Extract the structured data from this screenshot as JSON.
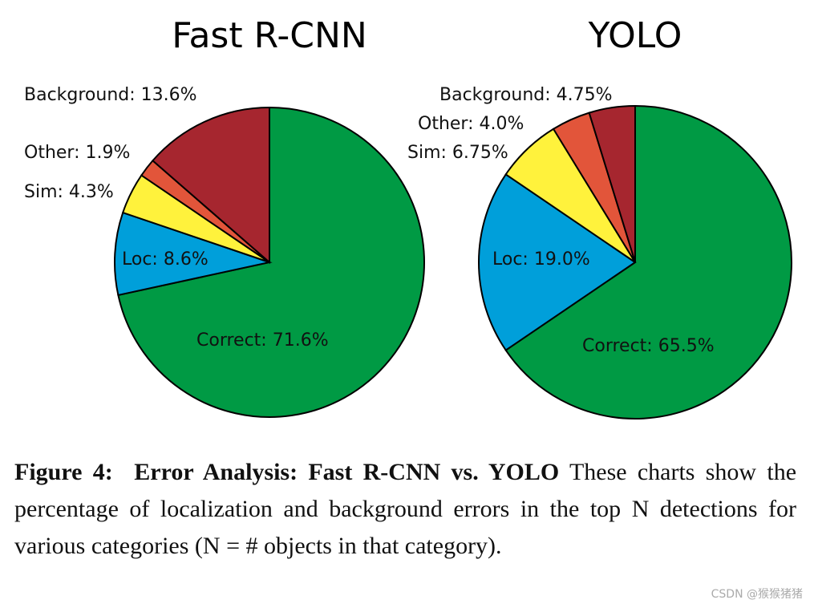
{
  "chart_data": [
    {
      "type": "pie",
      "title": "Fast R-CNN",
      "values": [
        71.6,
        8.6,
        4.3,
        1.9,
        13.6
      ],
      "value_labels": [
        "Correct: 71.6%",
        "Loc: 8.6%",
        "Sim: 4.3%",
        "Other: 1.9%",
        "Background: 13.6%"
      ],
      "colors": [
        "#009a44",
        "#009fda",
        "#fff23c",
        "#e2553a",
        "#a6262f"
      ]
    },
    {
      "type": "pie",
      "title": "YOLO",
      "values": [
        65.5,
        19.0,
        6.75,
        4.0,
        4.75
      ],
      "value_labels": [
        "Correct: 65.5%",
        "Loc: 19.0%",
        "Sim: 6.75%",
        "Other: 4.0%",
        "Background: 4.75%"
      ],
      "colors": [
        "#009a44",
        "#009fda",
        "#fff23c",
        "#e2553a",
        "#a6262f"
      ]
    }
  ],
  "caption": {
    "label": "Figure 4:",
    "heading": "Error Analysis: Fast R-CNN vs. YOLO",
    "body": "These charts show the percentage of localization and background errors in the top N detections for various categories (N = # objects in that category)."
  },
  "watermark": "CSDN @猴猴猪猪"
}
